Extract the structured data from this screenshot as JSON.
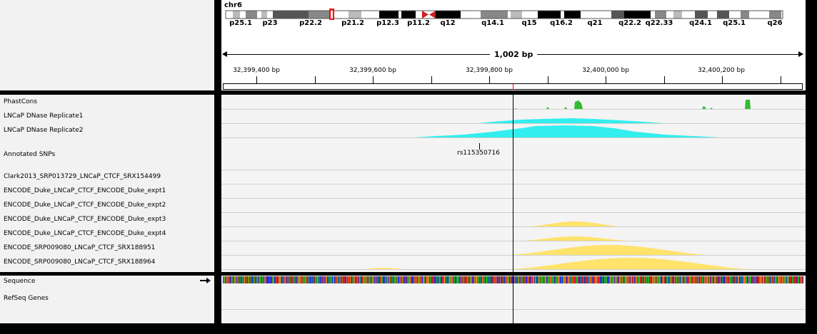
{
  "header": {
    "chromosome": "chr6",
    "band_labels": [
      "p25.1",
      "p23",
      "p22.2",
      "p21.2",
      "p12.3",
      "p11.2",
      "q12",
      "q14.1",
      "q15",
      "q16.2",
      "q21",
      "q22.2",
      "q22.33",
      "q24.1",
      "q25.1",
      "q26"
    ],
    "ruler_span": "1,002 bp",
    "ruler_ticks": [
      "32,399,400 bp",
      "32,399,600 bp",
      "32,399,800 bp",
      "32,400,000 bp",
      "32,400,200 bp"
    ]
  },
  "data_panel": {
    "track_names": [
      "PhastCons",
      "LNCaP DNase Replicate1",
      "LNCaP DNase Replicate2",
      "Annotated SNPs",
      "Clark2013_SRP013729_LNCaP_CTCF_SRX154499",
      "ENCODE_Duke_LNCaP_CTCF_ENCODE_Duke_expt1",
      "ENCODE_Duke_LNCaP_CTCF_ENCODE_Duke_expt2",
      "ENCODE_Duke_LNCaP_CTCF_ENCODE_Duke_expt3",
      "ENCODE_Duke_LNCaP_CTCF_ENCODE_Duke_expt4",
      "ENCODE_SRP009080_LNCaP_CTCF_SRX188951",
      "ENCODE_SRP009080_LNCaP_CTCF_SRX188964"
    ],
    "snp_label": "rs115350716"
  },
  "feature_panel": {
    "track_names": [
      "Sequence",
      "RefSeq Genes"
    ]
  },
  "colors": {
    "phastcons": "#33bb33",
    "dnase": "#33eeee",
    "ctcf": "#ffe36b",
    "centromere": "#cc2222",
    "current_region": "#ff0000"
  }
}
